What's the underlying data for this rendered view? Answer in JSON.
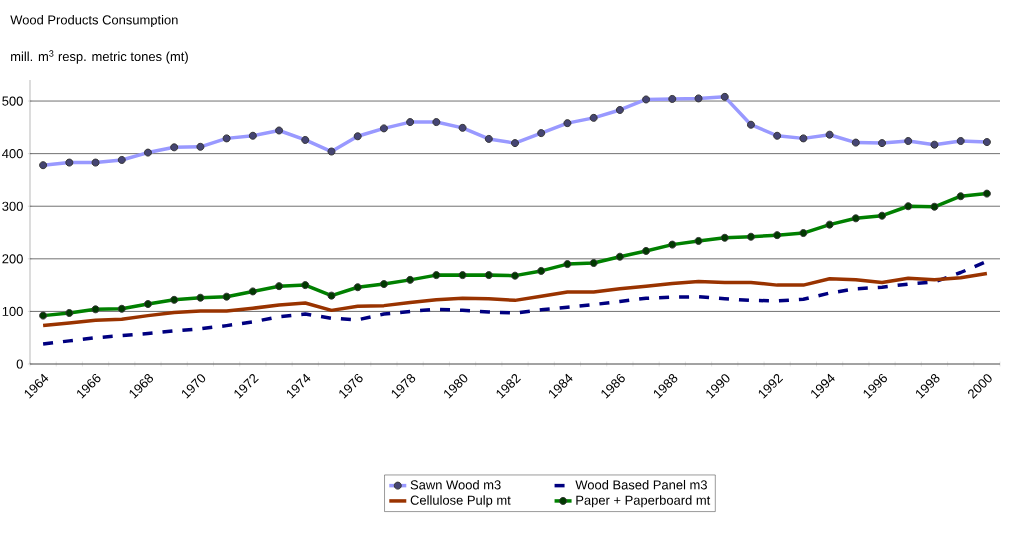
{
  "chart_data": {
    "type": "line",
    "title": "Wood Products Consumption",
    "ylabel": "mill. m$^{3}$ resp. metric tones (mt)",
    "categories": [
      "1964",
      null,
      "1966",
      null,
      "1968",
      null,
      "1970",
      null,
      "1972",
      null,
      "1974",
      null,
      "1976",
      null,
      "1978",
      null,
      "1980",
      null,
      "1982",
      null,
      "1984",
      null,
      "1986",
      null,
      "1988",
      null,
      "1990",
      null,
      "1992",
      null,
      "1994",
      null,
      "1996",
      null,
      "1998",
      null,
      "2000"
    ],
    "ylim": [
      0,
      540
    ],
    "yticks": [
      0,
      100,
      200,
      300,
      400,
      500
    ],
    "grid": "y",
    "legend": "bottom",
    "series": [
      {
        "name": "Sawn Wood m3",
        "color": "#9999ff",
        "marker": "circle",
        "line_style": "solid",
        "values": [
          378,
          383,
          383,
          388,
          402,
          412,
          413,
          429,
          434,
          444,
          426,
          404,
          433,
          448,
          460,
          460,
          449,
          428,
          420,
          439,
          458,
          468,
          483,
          503,
          504,
          505,
          508,
          455,
          434,
          429,
          436,
          421,
          420,
          424,
          417,
          424,
          422
        ]
      },
      {
        "name": "Wood Based Panel m3",
        "color": "#000080",
        "marker": "none",
        "line_style": "dashed",
        "values": [
          38,
          44,
          50,
          54,
          58,
          63,
          67,
          73,
          80,
          90,
          95,
          87,
          84,
          95,
          100,
          104,
          102,
          99,
          97,
          103,
          108,
          113,
          119,
          125,
          127,
          128,
          124,
          121,
          120,
          123,
          135,
          143,
          146,
          152,
          156,
          174,
          195
        ]
      },
      {
        "name": "Cellulose Pulp mt",
        "color": "#993300",
        "marker": "none",
        "line_style": "solid",
        "values": [
          73,
          78,
          83,
          85,
          92,
          98,
          101,
          101,
          106,
          112,
          116,
          102,
          110,
          111,
          117,
          122,
          125,
          124,
          121,
          129,
          137,
          137,
          143,
          148,
          153,
          157,
          155,
          155,
          150,
          150,
          162,
          160,
          155,
          163,
          160,
          164,
          172
        ]
      },
      {
        "name": "Paper + Paperboard mt",
        "color": "#008000",
        "marker": "circle",
        "line_style": "solid",
        "values": [
          92,
          97,
          104,
          105,
          114,
          122,
          126,
          128,
          138,
          148,
          150,
          130,
          146,
          152,
          160,
          169,
          169,
          169,
          168,
          177,
          190,
          192,
          204,
          215,
          227,
          234,
          240,
          242,
          245,
          249,
          265,
          277,
          282,
          300,
          299,
          319,
          324
        ]
      }
    ]
  }
}
